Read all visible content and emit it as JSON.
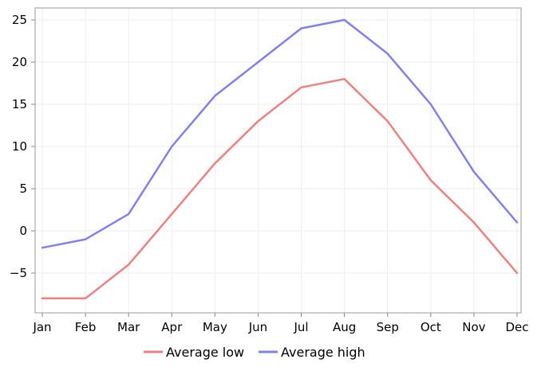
{
  "chart_data": {
    "type": "line",
    "title": "",
    "xlabel": "",
    "ylabel": "",
    "categories": [
      "Jan",
      "Feb",
      "Mar",
      "Apr",
      "May",
      "Jun",
      "Jul",
      "Aug",
      "Sep",
      "Oct",
      "Nov",
      "Dec"
    ],
    "series": [
      {
        "name": "Average low",
        "color": "#f08080",
        "values": [
          -8,
          -8,
          -4,
          2,
          8,
          13,
          17,
          18,
          13,
          6,
          1,
          -5
        ]
      },
      {
        "name": "Average high",
        "color": "#8080f0",
        "values": [
          -2,
          -1,
          2,
          10,
          16,
          20,
          24,
          25,
          21,
          15,
          7,
          1
        ]
      }
    ],
    "ylim": [
      -9.5,
      26
    ],
    "yticks": [
      25,
      20,
      15,
      10,
      5,
      0,
      -5
    ],
    "grid": true,
    "legend_position": "bottom"
  }
}
